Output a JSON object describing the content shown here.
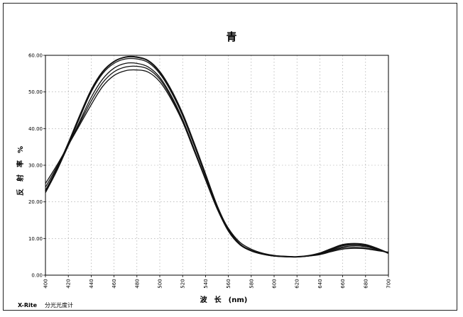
{
  "chart_data": {
    "type": "line",
    "title": "青",
    "xlabel": "波　长　(nm)",
    "ylabel": "反　射　率　%",
    "xlim": [
      400,
      700
    ],
    "ylim": [
      0,
      60
    ],
    "x_ticks": [
      400,
      420,
      440,
      460,
      480,
      500,
      520,
      540,
      560,
      580,
      600,
      620,
      640,
      660,
      680,
      700
    ],
    "y_ticks": [
      0,
      10,
      20,
      30,
      40,
      50,
      60
    ],
    "y_tick_labels": [
      "0.00",
      "10.00",
      "20.00",
      "30.00",
      "40.00",
      "50.00",
      "60.00"
    ],
    "grid": "both (dashed)",
    "legend": "none",
    "x": [
      400,
      410,
      420,
      430,
      440,
      450,
      460,
      470,
      480,
      490,
      500,
      510,
      520,
      530,
      540,
      550,
      560,
      570,
      580,
      590,
      600,
      610,
      620,
      630,
      640,
      650,
      660,
      670,
      680,
      690,
      700
    ],
    "series": [
      {
        "values": [
          23.0,
          29.0,
          36.0,
          43.5,
          50.5,
          55.5,
          58.3,
          59.5,
          59.5,
          58.5,
          55.5,
          50.5,
          44.0,
          36.0,
          27.5,
          19.0,
          12.5,
          8.5,
          6.7,
          5.8,
          5.3,
          5.1,
          5.0,
          5.3,
          6.0,
          7.2,
          8.3,
          8.6,
          8.3,
          7.3,
          6.0
        ]
      },
      {
        "values": [
          22.5,
          28.5,
          35.5,
          43.0,
          50.0,
          55.0,
          57.8,
          59.0,
          59.0,
          58.0,
          55.0,
          50.0,
          43.5,
          35.5,
          27.0,
          18.7,
          12.3,
          8.4,
          6.6,
          5.7,
          5.2,
          5.1,
          5.0,
          5.3,
          5.9,
          7.0,
          8.0,
          8.3,
          8.0,
          7.1,
          6.0
        ]
      },
      {
        "values": [
          23.0,
          28.8,
          35.3,
          42.0,
          48.5,
          53.5,
          56.5,
          57.8,
          57.8,
          56.8,
          54.0,
          49.0,
          42.5,
          34.5,
          26.3,
          18.3,
          12.0,
          8.3,
          6.6,
          5.7,
          5.2,
          5.0,
          5.0,
          5.3,
          5.8,
          6.8,
          7.7,
          8.0,
          7.8,
          7.0,
          6.1
        ]
      },
      {
        "values": [
          24.0,
          29.5,
          35.5,
          41.5,
          47.5,
          52.5,
          55.5,
          56.8,
          57.0,
          56.2,
          53.5,
          48.5,
          42.0,
          34.0,
          26.0,
          18.2,
          12.2,
          8.5,
          6.8,
          5.8,
          5.3,
          5.1,
          5.0,
          5.2,
          5.7,
          6.6,
          7.4,
          7.6,
          7.4,
          6.8,
          6.2
        ]
      },
      {
        "values": [
          25.0,
          30.0,
          35.5,
          41.0,
          46.5,
          51.5,
          54.5,
          55.8,
          56.0,
          55.4,
          52.8,
          48.0,
          41.8,
          34.0,
          26.2,
          18.6,
          12.8,
          9.0,
          7.1,
          6.0,
          5.4,
          5.1,
          5.0,
          5.2,
          5.6,
          6.4,
          7.1,
          7.3,
          7.2,
          6.7,
          6.3
        ]
      }
    ]
  },
  "footer": {
    "brand": "X-Rite",
    "device": "分光光度计"
  }
}
